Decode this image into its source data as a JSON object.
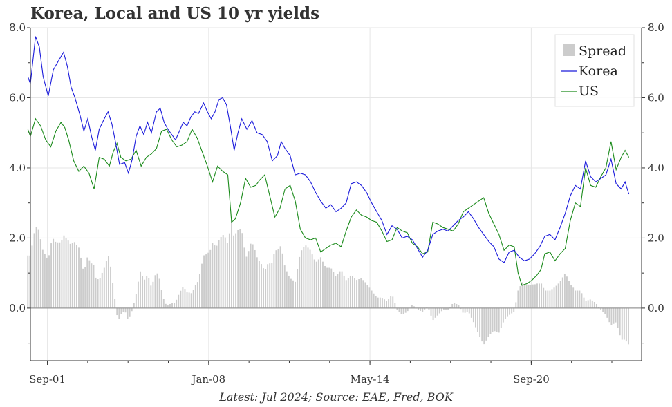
{
  "chart_data": {
    "type": "line",
    "title": "Korea, Local and US 10 yr yields",
    "footnote": "Latest: Jul 2024; Source: EAE, Fred, BOK",
    "x_tick_labels": [
      "Sep-01",
      "Jan-08",
      "May-14",
      "Sep-20"
    ],
    "x_ticks": [
      2001.667,
      2008.0,
      2014.333,
      2020.667
    ],
    "xlim": [
      2001.0,
      2025.0
    ],
    "ylim": [
      -1.5,
      8.0
    ],
    "y_ticks": [
      0.0,
      2.0,
      4.0,
      6.0,
      8.0
    ],
    "y_tick_labels": [
      "0.0",
      "2.0",
      "4.0",
      "6.0",
      "8.0"
    ],
    "grid": true,
    "legend_position": "top-right",
    "colors": {
      "Spread": "#cccccc",
      "Korea": "#1a1adb",
      "US": "#1a8a1a"
    },
    "korea_points": [
      [
        2000.9,
        6.6
      ],
      [
        2001.0,
        6.4
      ],
      [
        2001.2,
        7.75
      ],
      [
        2001.35,
        7.45
      ],
      [
        2001.5,
        6.6
      ],
      [
        2001.7,
        6.05
      ],
      [
        2001.9,
        6.8
      ],
      [
        2002.1,
        7.05
      ],
      [
        2002.3,
        7.3
      ],
      [
        2002.45,
        6.9
      ],
      [
        2002.6,
        6.3
      ],
      [
        2002.75,
        6.0
      ],
      [
        2002.95,
        5.5
      ],
      [
        2003.1,
        5.05
      ],
      [
        2003.25,
        5.4
      ],
      [
        2003.4,
        4.9
      ],
      [
        2003.55,
        4.5
      ],
      [
        2003.7,
        5.1
      ],
      [
        2003.9,
        5.4
      ],
      [
        2004.05,
        5.6
      ],
      [
        2004.2,
        5.25
      ],
      [
        2004.35,
        4.7
      ],
      [
        2004.5,
        4.1
      ],
      [
        2004.7,
        4.15
      ],
      [
        2004.85,
        3.85
      ],
      [
        2005.0,
        4.25
      ],
      [
        2005.15,
        4.9
      ],
      [
        2005.3,
        5.2
      ],
      [
        2005.45,
        4.95
      ],
      [
        2005.6,
        5.3
      ],
      [
        2005.75,
        5.0
      ],
      [
        2005.95,
        5.6
      ],
      [
        2006.1,
        5.7
      ],
      [
        2006.25,
        5.3
      ],
      [
        2006.4,
        5.1
      ],
      [
        2006.55,
        4.95
      ],
      [
        2006.7,
        4.8
      ],
      [
        2006.85,
        5.05
      ],
      [
        2007.0,
        5.3
      ],
      [
        2007.15,
        5.2
      ],
      [
        2007.3,
        5.45
      ],
      [
        2007.45,
        5.6
      ],
      [
        2007.6,
        5.55
      ],
      [
        2007.8,
        5.85
      ],
      [
        2007.95,
        5.6
      ],
      [
        2008.1,
        5.4
      ],
      [
        2008.25,
        5.6
      ],
      [
        2008.4,
        5.95
      ],
      [
        2008.55,
        6.0
      ],
      [
        2008.7,
        5.8
      ],
      [
        2008.85,
        5.2
      ],
      [
        2009.0,
        4.5
      ],
      [
        2009.15,
        5.0
      ],
      [
        2009.3,
        5.4
      ],
      [
        2009.5,
        5.1
      ],
      [
        2009.7,
        5.35
      ],
      [
        2009.9,
        5.0
      ],
      [
        2010.1,
        4.95
      ],
      [
        2010.3,
        4.75
      ],
      [
        2010.5,
        4.2
      ],
      [
        2010.7,
        4.35
      ],
      [
        2010.85,
        4.75
      ],
      [
        2011.0,
        4.55
      ],
      [
        2011.2,
        4.35
      ],
      [
        2011.4,
        3.8
      ],
      [
        2011.6,
        3.85
      ],
      [
        2011.8,
        3.8
      ],
      [
        2012.0,
        3.6
      ],
      [
        2012.2,
        3.3
      ],
      [
        2012.4,
        3.05
      ],
      [
        2012.6,
        2.85
      ],
      [
        2012.8,
        2.95
      ],
      [
        2013.0,
        2.75
      ],
      [
        2013.2,
        2.85
      ],
      [
        2013.4,
        3.0
      ],
      [
        2013.6,
        3.55
      ],
      [
        2013.8,
        3.6
      ],
      [
        2014.0,
        3.5
      ],
      [
        2014.2,
        3.3
      ],
      [
        2014.4,
        3.0
      ],
      [
        2014.6,
        2.75
      ],
      [
        2014.8,
        2.5
      ],
      [
        2015.0,
        2.1
      ],
      [
        2015.2,
        2.35
      ],
      [
        2015.4,
        2.25
      ],
      [
        2015.6,
        2.0
      ],
      [
        2015.8,
        2.05
      ],
      [
        2016.0,
        1.95
      ],
      [
        2016.2,
        1.7
      ],
      [
        2016.4,
        1.45
      ],
      [
        2016.6,
        1.65
      ],
      [
        2016.8,
        2.1
      ],
      [
        2017.0,
        2.2
      ],
      [
        2017.2,
        2.25
      ],
      [
        2017.4,
        2.2
      ],
      [
        2017.6,
        2.35
      ],
      [
        2017.8,
        2.5
      ],
      [
        2018.0,
        2.6
      ],
      [
        2018.2,
        2.75
      ],
      [
        2018.4,
        2.55
      ],
      [
        2018.6,
        2.3
      ],
      [
        2018.8,
        2.1
      ],
      [
        2019.0,
        1.9
      ],
      [
        2019.2,
        1.75
      ],
      [
        2019.4,
        1.4
      ],
      [
        2019.6,
        1.3
      ],
      [
        2019.8,
        1.6
      ],
      [
        2020.0,
        1.65
      ],
      [
        2020.2,
        1.45
      ],
      [
        2020.4,
        1.35
      ],
      [
        2020.6,
        1.4
      ],
      [
        2020.8,
        1.55
      ],
      [
        2021.0,
        1.75
      ],
      [
        2021.2,
        2.05
      ],
      [
        2021.4,
        2.1
      ],
      [
        2021.6,
        1.95
      ],
      [
        2021.8,
        2.3
      ],
      [
        2022.0,
        2.7
      ],
      [
        2022.2,
        3.2
      ],
      [
        2022.4,
        3.5
      ],
      [
        2022.6,
        3.4
      ],
      [
        2022.8,
        4.2
      ],
      [
        2023.0,
        3.75
      ],
      [
        2023.2,
        3.6
      ],
      [
        2023.4,
        3.7
      ],
      [
        2023.6,
        3.8
      ],
      [
        2023.8,
        4.25
      ],
      [
        2024.0,
        3.55
      ],
      [
        2024.2,
        3.4
      ],
      [
        2024.35,
        3.6
      ],
      [
        2024.5,
        3.25
      ]
    ],
    "us_points": [
      [
        2000.9,
        5.1
      ],
      [
        2001.0,
        4.9
      ],
      [
        2001.2,
        5.4
      ],
      [
        2001.4,
        5.2
      ],
      [
        2001.6,
        4.8
      ],
      [
        2001.8,
        4.6
      ],
      [
        2002.0,
        5.05
      ],
      [
        2002.2,
        5.3
      ],
      [
        2002.35,
        5.15
      ],
      [
        2002.5,
        4.8
      ],
      [
        2002.7,
        4.2
      ],
      [
        2002.9,
        3.9
      ],
      [
        2003.1,
        4.05
      ],
      [
        2003.3,
        3.85
      ],
      [
        2003.5,
        3.4
      ],
      [
        2003.7,
        4.3
      ],
      [
        2003.9,
        4.25
      ],
      [
        2004.1,
        4.05
      ],
      [
        2004.25,
        4.45
      ],
      [
        2004.4,
        4.7
      ],
      [
        2004.55,
        4.3
      ],
      [
        2004.75,
        4.2
      ],
      [
        2004.95,
        4.25
      ],
      [
        2005.15,
        4.5
      ],
      [
        2005.35,
        4.05
      ],
      [
        2005.55,
        4.3
      ],
      [
        2005.75,
        4.4
      ],
      [
        2005.95,
        4.55
      ],
      [
        2006.15,
        5.05
      ],
      [
        2006.35,
        5.1
      ],
      [
        2006.55,
        4.8
      ],
      [
        2006.75,
        4.6
      ],
      [
        2006.95,
        4.65
      ],
      [
        2007.15,
        4.75
      ],
      [
        2007.35,
        5.1
      ],
      [
        2007.55,
        4.85
      ],
      [
        2007.75,
        4.45
      ],
      [
        2007.95,
        4.05
      ],
      [
        2008.15,
        3.6
      ],
      [
        2008.35,
        4.05
      ],
      [
        2008.55,
        3.9
      ],
      [
        2008.75,
        3.8
      ],
      [
        2008.9,
        2.45
      ],
      [
        2009.05,
        2.55
      ],
      [
        2009.25,
        3.0
      ],
      [
        2009.45,
        3.7
      ],
      [
        2009.65,
        3.45
      ],
      [
        2009.85,
        3.5
      ],
      [
        2010.0,
        3.65
      ],
      [
        2010.2,
        3.8
      ],
      [
        2010.4,
        3.2
      ],
      [
        2010.6,
        2.6
      ],
      [
        2010.8,
        2.85
      ],
      [
        2011.0,
        3.4
      ],
      [
        2011.2,
        3.5
      ],
      [
        2011.4,
        3.05
      ],
      [
        2011.6,
        2.25
      ],
      [
        2011.8,
        2.0
      ],
      [
        2012.0,
        1.95
      ],
      [
        2012.2,
        2.0
      ],
      [
        2012.4,
        1.6
      ],
      [
        2012.6,
        1.7
      ],
      [
        2012.8,
        1.8
      ],
      [
        2013.0,
        1.85
      ],
      [
        2013.2,
        1.75
      ],
      [
        2013.4,
        2.2
      ],
      [
        2013.6,
        2.6
      ],
      [
        2013.8,
        2.8
      ],
      [
        2014.0,
        2.65
      ],
      [
        2014.2,
        2.6
      ],
      [
        2014.4,
        2.5
      ],
      [
        2014.6,
        2.45
      ],
      [
        2014.8,
        2.2
      ],
      [
        2015.0,
        1.9
      ],
      [
        2015.2,
        1.95
      ],
      [
        2015.4,
        2.3
      ],
      [
        2015.6,
        2.2
      ],
      [
        2015.8,
        2.15
      ],
      [
        2016.0,
        1.85
      ],
      [
        2016.2,
        1.75
      ],
      [
        2016.4,
        1.55
      ],
      [
        2016.6,
        1.6
      ],
      [
        2016.8,
        2.45
      ],
      [
        2017.0,
        2.4
      ],
      [
        2017.2,
        2.3
      ],
      [
        2017.4,
        2.25
      ],
      [
        2017.6,
        2.2
      ],
      [
        2017.8,
        2.4
      ],
      [
        2018.0,
        2.75
      ],
      [
        2018.2,
        2.85
      ],
      [
        2018.4,
        2.95
      ],
      [
        2018.6,
        3.05
      ],
      [
        2018.8,
        3.15
      ],
      [
        2019.0,
        2.7
      ],
      [
        2019.2,
        2.4
      ],
      [
        2019.4,
        2.1
      ],
      [
        2019.6,
        1.65
      ],
      [
        2019.8,
        1.8
      ],
      [
        2020.0,
        1.75
      ],
      [
        2020.15,
        1.0
      ],
      [
        2020.3,
        0.65
      ],
      [
        2020.5,
        0.7
      ],
      [
        2020.7,
        0.8
      ],
      [
        2020.9,
        0.95
      ],
      [
        2021.05,
        1.1
      ],
      [
        2021.2,
        1.55
      ],
      [
        2021.4,
        1.6
      ],
      [
        2021.6,
        1.35
      ],
      [
        2021.8,
        1.55
      ],
      [
        2022.0,
        1.7
      ],
      [
        2022.2,
        2.5
      ],
      [
        2022.4,
        3.0
      ],
      [
        2022.6,
        2.9
      ],
      [
        2022.8,
        4.0
      ],
      [
        2023.0,
        3.5
      ],
      [
        2023.2,
        3.45
      ],
      [
        2023.4,
        3.75
      ],
      [
        2023.6,
        4.0
      ],
      [
        2023.8,
        4.75
      ],
      [
        2024.0,
        3.95
      ],
      [
        2024.2,
        4.3
      ],
      [
        2024.35,
        4.5
      ],
      [
        2024.5,
        4.3
      ]
    ]
  },
  "legend": {
    "spread_label": "Spread",
    "korea_label": "Korea",
    "us_label": "US"
  }
}
